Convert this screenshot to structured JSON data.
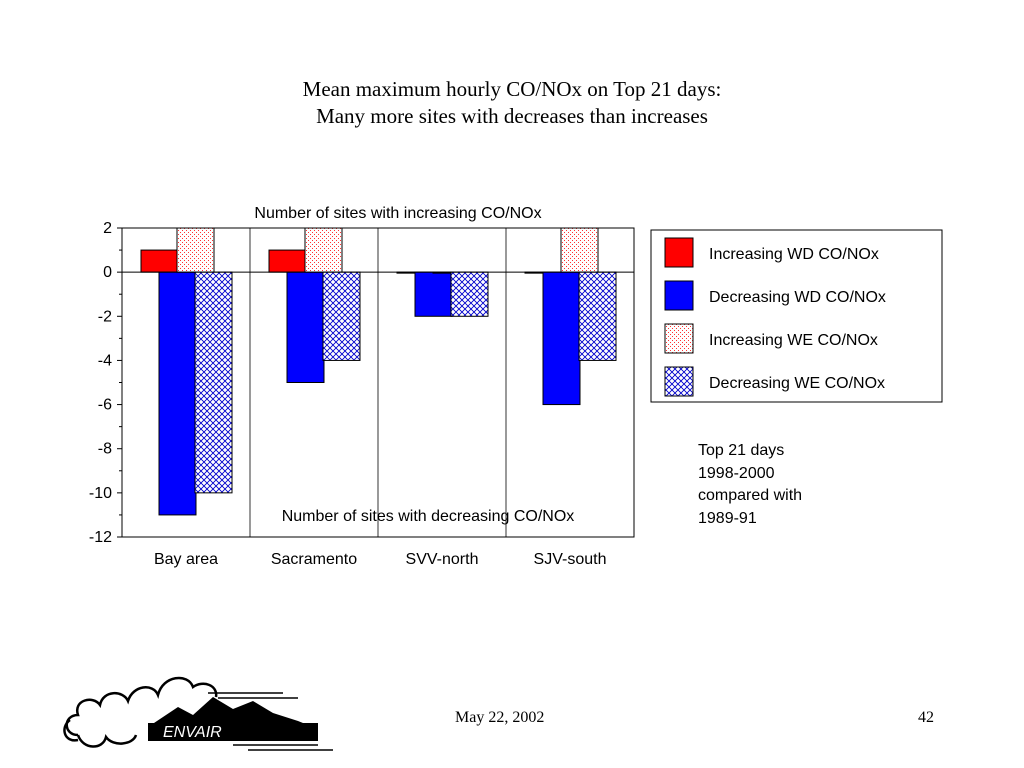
{
  "slide": {
    "title_line1": "Mean maximum hourly CO/NOx on Top 21 days:",
    "title_line2": "Many more sites with decreases than increases",
    "note_lines": [
      "Top 21 days",
      "1998-2000",
      "compared with",
      "1989-91"
    ],
    "footer_date": "May 22, 2002",
    "footer_page": "42",
    "logo_text": "ENVAIR"
  },
  "chart_data": {
    "type": "bar",
    "categories": [
      "Bay area",
      "Sacramento",
      "SVV-north",
      "SJV-south"
    ],
    "series": [
      {
        "name": "Increasing WD CO/NOx",
        "values": [
          1,
          1,
          0,
          0
        ],
        "color": "#ff0000",
        "pattern": "solid"
      },
      {
        "name": "Decreasing WD CO/NOx",
        "values": [
          -11,
          -5,
          -2,
          -6
        ],
        "color": "#0000ff",
        "pattern": "solid"
      },
      {
        "name": "Increasing WE CO/NOx",
        "values": [
          2,
          2,
          0,
          2
        ],
        "color": "#ff0000",
        "pattern": "light-dots"
      },
      {
        "name": "Decreasing WE CO/NOx",
        "values": [
          -10,
          -4,
          -2,
          -4
        ],
        "color": "#0000ff",
        "pattern": "crosshatch"
      }
    ],
    "ylim": [
      -12,
      2
    ],
    "yticks": [
      "2",
      "0",
      "-2",
      "-4",
      "-6",
      "-8",
      "-10",
      "-12"
    ],
    "top_annotation": "Number of sites with increasing CO/NOx",
    "bottom_annotation": "Number of sites with decreasing CO/NOx",
    "grid": "vertical",
    "legend_position": "right"
  }
}
